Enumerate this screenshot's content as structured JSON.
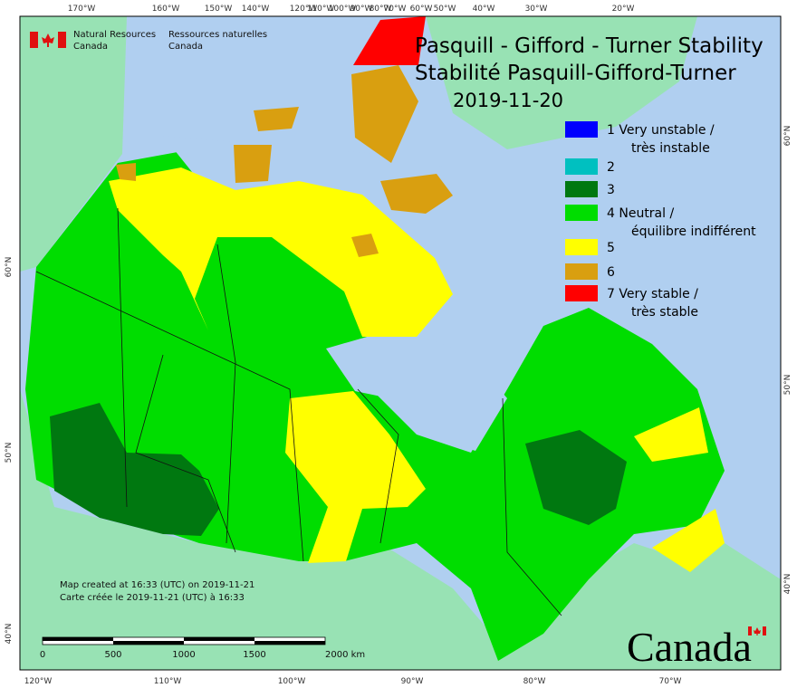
{
  "header": {
    "agency_en": [
      "Natural Resources",
      "Canada"
    ],
    "agency_fr": [
      "Ressources naturelles",
      "Canada"
    ]
  },
  "title": {
    "line1": "Pasquill - Gifford - Turner Stability",
    "line2": "Stabilité Pasquill-Gifford-Turner",
    "date": "2019-11-20"
  },
  "legend": [
    {
      "label": [
        "1 Very unstable /",
        "très instable"
      ],
      "color": "#0000ff"
    },
    {
      "label": [
        "2"
      ],
      "color": "#00c0c0"
    },
    {
      "label": [
        "3"
      ],
      "color": "#007810"
    },
    {
      "label": [
        "4 Neutral /",
        "équilibre indifférent"
      ],
      "color": "#00dd00"
    },
    {
      "label": [
        "5"
      ],
      "color": "#ffff00"
    },
    {
      "label": [
        "6"
      ],
      "color": "#d99f10"
    },
    {
      "label": [
        "7 Very stable /",
        "très stable"
      ],
      "color": "#ff0000"
    }
  ],
  "graticule": {
    "top": [
      "170°W",
      "160°W",
      "150°W",
      "140°W",
      "120°W",
      "110°W",
      "100°W",
      "90°W",
      "80°W",
      "70°W",
      "60°W",
      "50°W",
      "40°W",
      "30°W",
      "20°W"
    ],
    "bottom": [
      "120°W",
      "110°W",
      "100°W",
      "90°W",
      "80°W",
      "70°W"
    ],
    "left": [
      "60°N",
      "50°N",
      "40°N"
    ],
    "right": [
      "60°N",
      "50°N",
      "40°N"
    ]
  },
  "footer": {
    "created_en": "Map created at 16:33 (UTC) on 2019-11-21",
    "created_fr": "Carte créée le 2019-11-21 (UTC) à 16:33"
  },
  "scalebar": [
    "0",
    "500",
    "1000",
    "1500",
    "2000 km"
  ],
  "wordmark": "Canada"
}
